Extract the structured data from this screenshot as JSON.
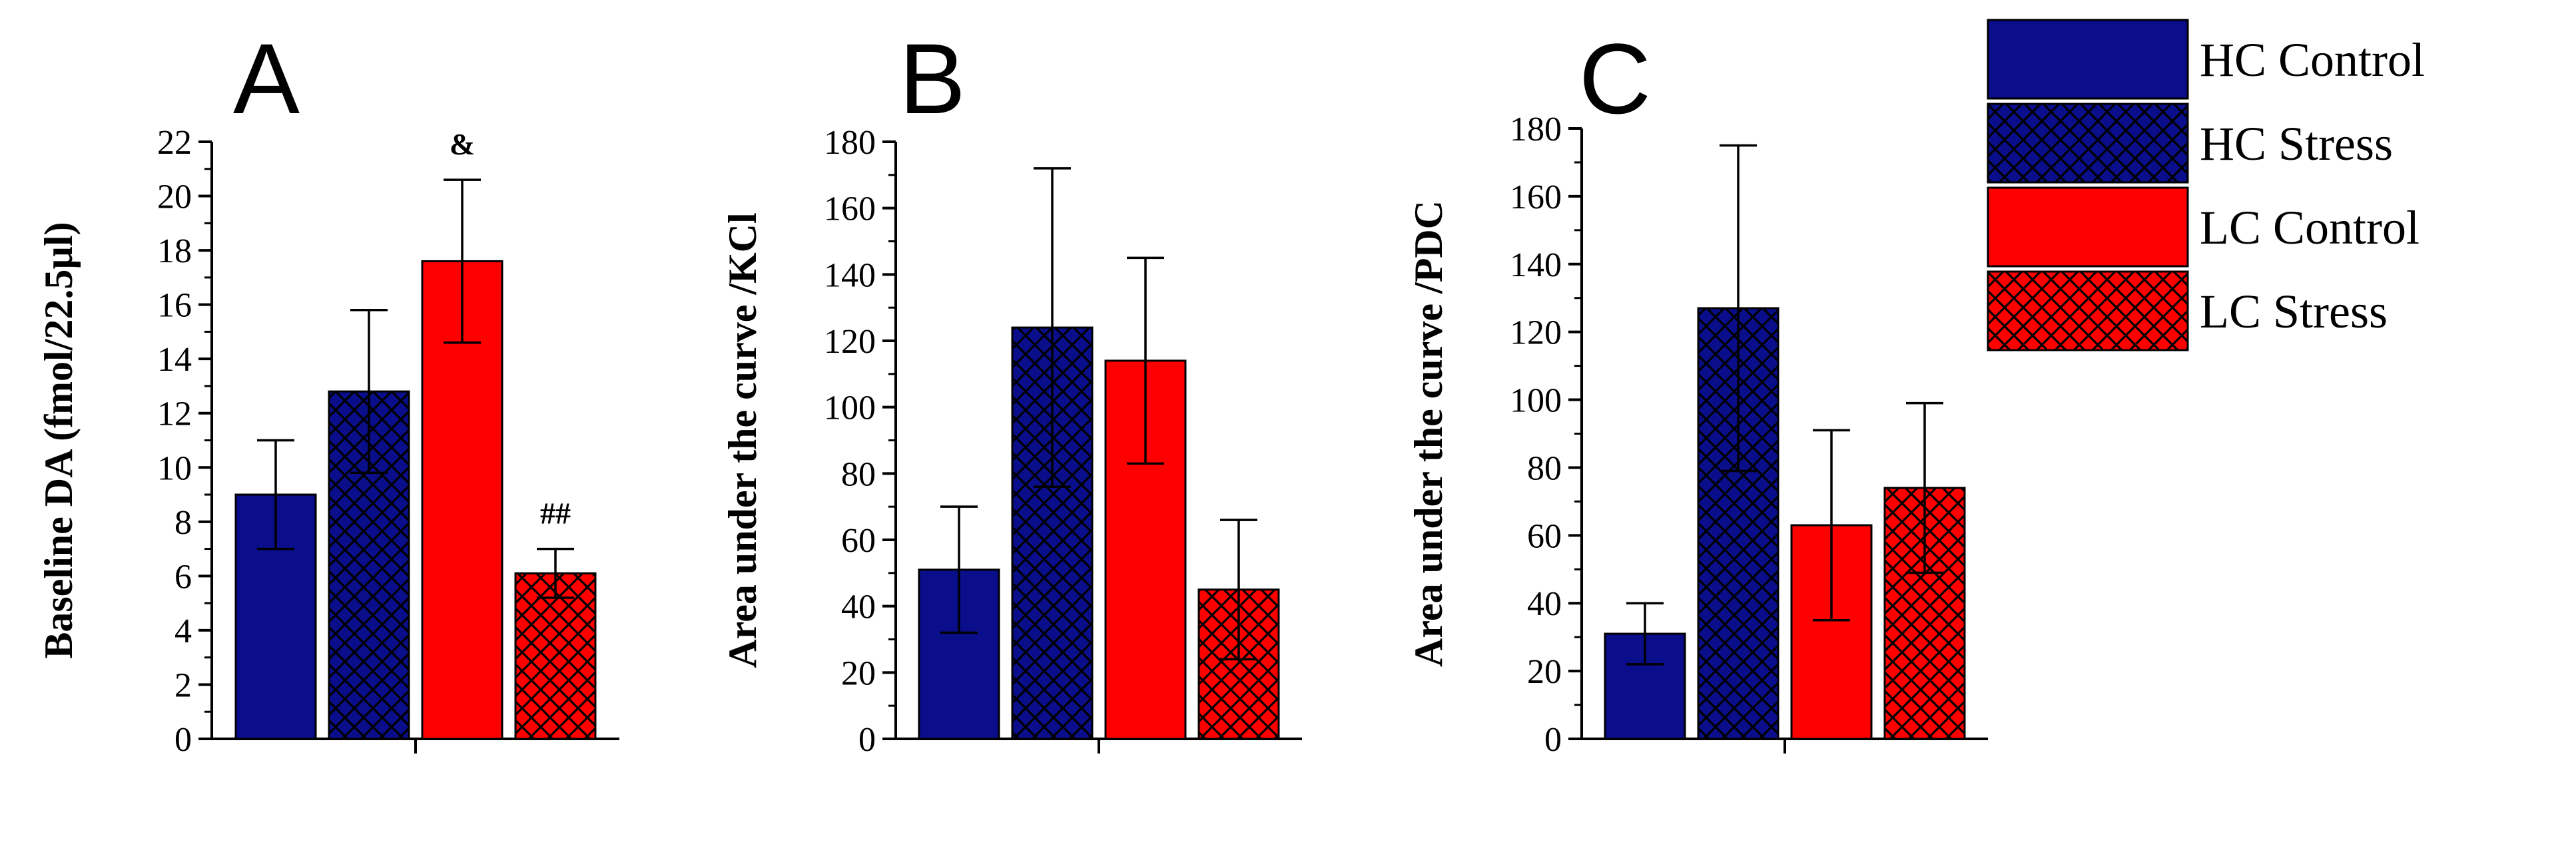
{
  "colors": {
    "hc": "#0a0e8a",
    "lc": "#ff0000",
    "axis": "#000000"
  },
  "legend": [
    {
      "label": "HC Control",
      "color": "hc",
      "pattern": "solid"
    },
    {
      "label": "HC Stress",
      "color": "hc",
      "pattern": "hatch"
    },
    {
      "label": "LC Control",
      "color": "lc",
      "pattern": "solid"
    },
    {
      "label": "LC Stress",
      "color": "lc",
      "pattern": "hatch"
    }
  ],
  "chart_data": [
    {
      "type": "bar",
      "panel": "A",
      "title": "A",
      "ylabel": "Baseline DA (fmol/22.5µl)",
      "ylim": [
        0,
        22
      ],
      "ytick_step": 2,
      "categories": [
        "HC Control",
        "HC Stress",
        "LC Control",
        "LC Stress"
      ],
      "values": [
        9.0,
        12.8,
        17.6,
        6.1
      ],
      "errors": [
        2.0,
        3.0,
        3.0,
        0.9
      ],
      "annotations": [
        {
          "category": "LC Control",
          "text": "&"
        },
        {
          "category": "LC Stress",
          "text": "##"
        }
      ]
    },
    {
      "type": "bar",
      "panel": "B",
      "title": "B",
      "ylabel": "Area under the curve /KCl",
      "ylim": [
        0,
        180
      ],
      "ytick_step": 20,
      "categories": [
        "HC Control",
        "HC Stress",
        "LC Control",
        "LC Stress"
      ],
      "values": [
        51,
        124,
        114,
        45
      ],
      "errors": [
        19,
        48,
        31,
        21
      ],
      "annotations": []
    },
    {
      "type": "bar",
      "panel": "C",
      "title": "C",
      "ylabel": "Area under the curve /PDC",
      "ylim": [
        0,
        180
      ],
      "ytick_step": 20,
      "categories": [
        "HC Control",
        "HC Stress",
        "LC Control",
        "LC Stress"
      ],
      "values": [
        31,
        127,
        63,
        74
      ],
      "errors": [
        9,
        48,
        28,
        25
      ],
      "annotations": []
    }
  ]
}
